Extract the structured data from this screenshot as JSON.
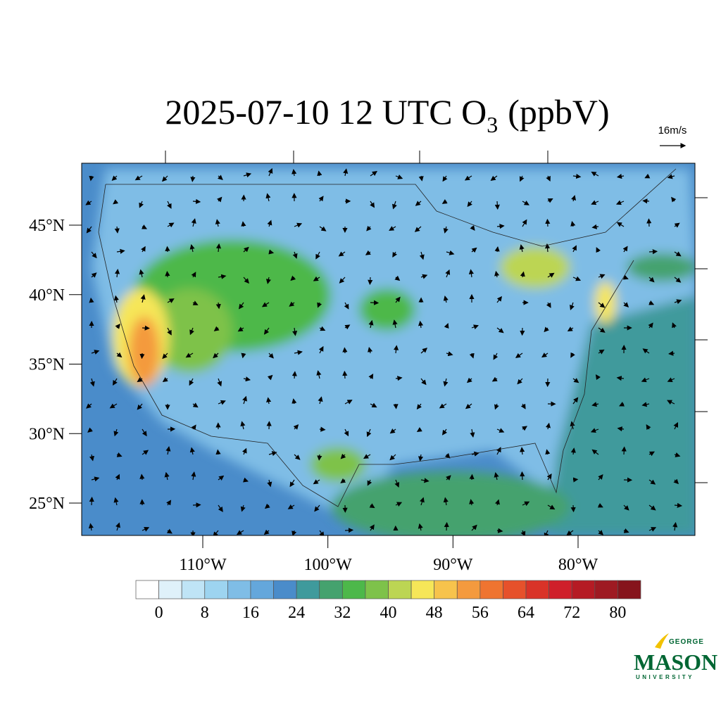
{
  "map": {
    "title": {
      "main": "2025-07-10 12 UTC O",
      "subscript": "3",
      "unit": "(ppbV)"
    },
    "reference_vector": "16m/s",
    "lat_ticks": [
      {
        "value": 45,
        "label": "45°N"
      },
      {
        "value": 40,
        "label": "40°N"
      },
      {
        "value": 35,
        "label": "35°N"
      },
      {
        "value": 30,
        "label": "30°N"
      },
      {
        "value": 25,
        "label": "25°N"
      }
    ],
    "lon_ticks": [
      {
        "value": -110,
        "label": "110°W"
      },
      {
        "value": -100,
        "label": "100°W"
      },
      {
        "value": -90,
        "label": "90°W"
      },
      {
        "value": -80,
        "label": "80°W"
      }
    ],
    "colorbar": {
      "levels": [
        0,
        4,
        8,
        12,
        16,
        20,
        24,
        28,
        32,
        36,
        40,
        44,
        48,
        52,
        56,
        60,
        64,
        68,
        72,
        76,
        80
      ],
      "labels": [
        0,
        8,
        16,
        24,
        32,
        40,
        48,
        56,
        64,
        72,
        80
      ],
      "colors": [
        "#ffffff",
        "#dff1fa",
        "#bfe4f6",
        "#9dd4f0",
        "#7fbde6",
        "#64a7dc",
        "#4a8cca",
        "#3f9a9c",
        "#45a26e",
        "#4db84a",
        "#7ec24a",
        "#bcd553",
        "#f6e658",
        "#f7c34c",
        "#f49a3e",
        "#ef7430",
        "#e6512b",
        "#d93328",
        "#cf1f2a",
        "#b51b24",
        "#9e1a22",
        "#86141c"
      ]
    },
    "logo": {
      "top": "GEORGE",
      "name": "MASON",
      "bottom": "UNIVERSITY"
    }
  }
}
